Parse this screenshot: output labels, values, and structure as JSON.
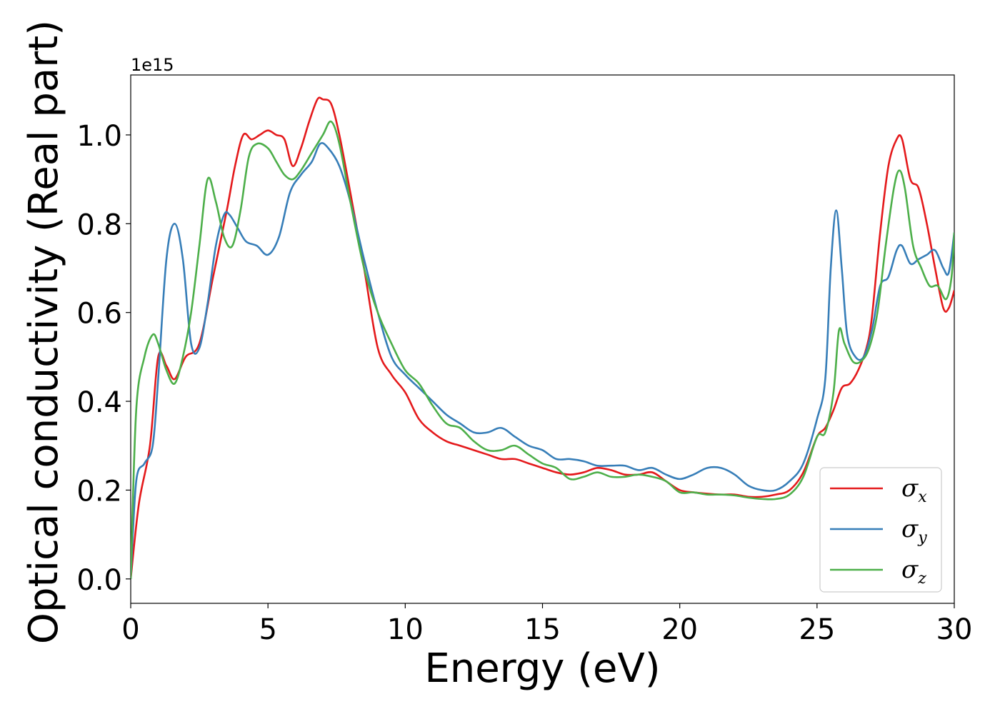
{
  "chart_data": {
    "type": "line",
    "xlabel": "Energy (eV)",
    "ylabel": "Optical conductivity (Real part)",
    "y_offset_label": "1e15",
    "xlim": [
      0,
      30
    ],
    "ylim": [
      -0.055,
      1.135
    ],
    "x_ticks": [
      0,
      5,
      10,
      15,
      20,
      25,
      30
    ],
    "x_tick_labels": [
      "0",
      "5",
      "10",
      "15",
      "20",
      "25",
      "30"
    ],
    "y_ticks": [
      0.0,
      0.2,
      0.4,
      0.6,
      0.8,
      1.0
    ],
    "y_tick_labels": [
      "0.0",
      "0.2",
      "0.4",
      "0.6",
      "0.8",
      "1.0"
    ],
    "grid": false,
    "legend_position": "lower-right",
    "series": [
      {
        "name": "σx",
        "symbol": "σ",
        "subscript": "x",
        "color": "#e41a1c",
        "x": [
          0,
          0.3,
          0.7,
          1.0,
          1.3,
          1.6,
          2.0,
          2.5,
          3.0,
          3.5,
          3.8,
          4.1,
          4.4,
          4.7,
          5.0,
          5.3,
          5.6,
          5.9,
          6.2,
          6.5,
          6.8,
          7.0,
          7.3,
          7.6,
          8.0,
          8.5,
          9.0,
          9.5,
          10.0,
          10.5,
          11.0,
          11.5,
          12.0,
          12.5,
          13.0,
          13.5,
          14.0,
          14.5,
          15.0,
          15.5,
          16.0,
          16.5,
          17.0,
          17.5,
          18.0,
          18.5,
          19.0,
          19.5,
          20.0,
          20.5,
          21.0,
          21.5,
          22.0,
          22.5,
          23.0,
          23.5,
          24.0,
          24.5,
          25.0,
          25.3,
          25.6,
          25.9,
          26.2,
          26.5,
          26.8,
          27.0,
          27.3,
          27.6,
          27.9,
          28.1,
          28.4,
          28.7,
          29.0,
          29.3,
          29.6,
          29.8,
          30.0
        ],
        "y": [
          0.0,
          0.17,
          0.3,
          0.5,
          0.48,
          0.45,
          0.5,
          0.53,
          0.68,
          0.83,
          0.93,
          1.0,
          0.99,
          1.0,
          1.01,
          1.0,
          0.99,
          0.93,
          0.97,
          1.03,
          1.08,
          1.08,
          1.07,
          1.0,
          0.87,
          0.7,
          0.52,
          0.46,
          0.42,
          0.36,
          0.33,
          0.31,
          0.3,
          0.29,
          0.28,
          0.27,
          0.27,
          0.26,
          0.25,
          0.24,
          0.235,
          0.24,
          0.25,
          0.245,
          0.235,
          0.235,
          0.24,
          0.22,
          0.2,
          0.195,
          0.192,
          0.19,
          0.19,
          0.185,
          0.185,
          0.19,
          0.2,
          0.24,
          0.32,
          0.34,
          0.38,
          0.43,
          0.44,
          0.47,
          0.52,
          0.59,
          0.78,
          0.93,
          0.99,
          0.99,
          0.9,
          0.88,
          0.8,
          0.7,
          0.61,
          0.61,
          0.65
        ]
      },
      {
        "name": "σy",
        "symbol": "σ",
        "subscript": "y",
        "color": "#377eb8",
        "x": [
          0,
          0.2,
          0.5,
          0.8,
          1.0,
          1.3,
          1.6,
          1.9,
          2.2,
          2.5,
          2.8,
          3.1,
          3.4,
          3.6,
          3.9,
          4.2,
          4.6,
          5.0,
          5.4,
          5.8,
          6.2,
          6.6,
          6.9,
          7.2,
          7.6,
          8.0,
          8.5,
          9.0,
          9.5,
          10.0,
          10.5,
          11.0,
          11.5,
          12.0,
          12.5,
          13.0,
          13.5,
          14.0,
          14.5,
          15.0,
          15.5,
          16.0,
          16.5,
          17.0,
          17.5,
          18.0,
          18.5,
          19.0,
          19.5,
          20.0,
          20.5,
          21.0,
          21.5,
          22.0,
          22.5,
          23.0,
          23.5,
          24.0,
          24.5,
          25.0,
          25.3,
          25.5,
          25.7,
          25.9,
          26.1,
          26.4,
          26.7,
          27.0,
          27.3,
          27.6,
          27.9,
          28.1,
          28.4,
          28.7,
          29.0,
          29.3,
          29.6,
          29.8,
          30.0
        ],
        "y": [
          0.0,
          0.22,
          0.26,
          0.3,
          0.45,
          0.72,
          0.8,
          0.72,
          0.53,
          0.52,
          0.62,
          0.75,
          0.82,
          0.82,
          0.79,
          0.76,
          0.75,
          0.73,
          0.77,
          0.87,
          0.91,
          0.94,
          0.98,
          0.97,
          0.93,
          0.85,
          0.72,
          0.6,
          0.5,
          0.46,
          0.43,
          0.4,
          0.37,
          0.35,
          0.33,
          0.33,
          0.34,
          0.32,
          0.3,
          0.29,
          0.27,
          0.27,
          0.265,
          0.255,
          0.255,
          0.255,
          0.245,
          0.25,
          0.235,
          0.225,
          0.235,
          0.25,
          0.25,
          0.235,
          0.21,
          0.2,
          0.2,
          0.22,
          0.26,
          0.36,
          0.45,
          0.7,
          0.83,
          0.7,
          0.55,
          0.5,
          0.5,
          0.56,
          0.66,
          0.68,
          0.74,
          0.75,
          0.71,
          0.72,
          0.73,
          0.74,
          0.7,
          0.69,
          0.78
        ]
      },
      {
        "name": "σz",
        "symbol": "σ",
        "subscript": "z",
        "color": "#4daf4a",
        "x": [
          0,
          0.2,
          0.5,
          0.8,
          1.0,
          1.3,
          1.6,
          1.9,
          2.2,
          2.5,
          2.8,
          3.1,
          3.4,
          3.7,
          4.0,
          4.3,
          4.6,
          5.0,
          5.3,
          5.6,
          5.9,
          6.2,
          6.6,
          7.0,
          7.3,
          7.6,
          8.0,
          8.5,
          9.0,
          9.5,
          10.0,
          10.5,
          11.0,
          11.5,
          12.0,
          12.5,
          13.0,
          13.5,
          14.0,
          14.5,
          15.0,
          15.5,
          16.0,
          16.5,
          17.0,
          17.5,
          18.0,
          18.5,
          19.0,
          19.5,
          20.0,
          20.5,
          21.0,
          21.5,
          22.0,
          22.5,
          23.0,
          23.5,
          24.0,
          24.5,
          25.0,
          25.3,
          25.6,
          25.8,
          26.0,
          26.3,
          26.6,
          26.9,
          27.2,
          27.5,
          27.8,
          28.0,
          28.2,
          28.5,
          28.8,
          29.1,
          29.4,
          29.7,
          29.9,
          30.0
        ],
        "y": [
          0.0,
          0.38,
          0.5,
          0.55,
          0.53,
          0.47,
          0.44,
          0.5,
          0.6,
          0.75,
          0.9,
          0.85,
          0.77,
          0.75,
          0.83,
          0.95,
          0.98,
          0.97,
          0.94,
          0.91,
          0.9,
          0.92,
          0.96,
          1.0,
          1.03,
          0.98,
          0.85,
          0.7,
          0.6,
          0.53,
          0.47,
          0.44,
          0.39,
          0.35,
          0.34,
          0.31,
          0.29,
          0.29,
          0.3,
          0.28,
          0.26,
          0.25,
          0.225,
          0.23,
          0.24,
          0.23,
          0.23,
          0.235,
          0.23,
          0.22,
          0.195,
          0.195,
          0.19,
          0.19,
          0.188,
          0.183,
          0.18,
          0.18,
          0.19,
          0.23,
          0.32,
          0.33,
          0.42,
          0.56,
          0.53,
          0.49,
          0.49,
          0.52,
          0.6,
          0.75,
          0.88,
          0.92,
          0.88,
          0.75,
          0.7,
          0.66,
          0.66,
          0.63,
          0.68,
          0.78
        ]
      }
    ]
  }
}
